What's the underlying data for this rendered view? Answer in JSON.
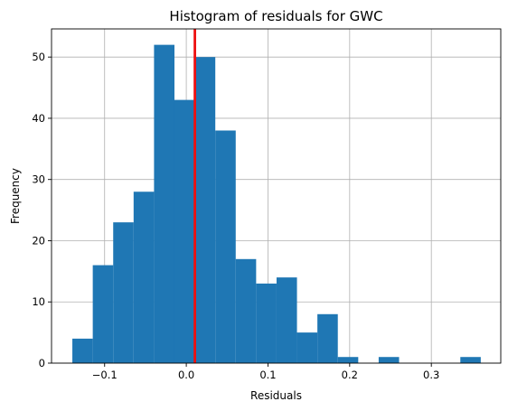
{
  "chart_data": {
    "type": "bar",
    "title": "Histogram of residuals for GWC",
    "xlabel": "Residuals",
    "ylabel": "Frequency",
    "grid": true,
    "xlim": [
      -0.165,
      0.385
    ],
    "ylim": [
      0,
      54.6
    ],
    "xticks": [
      -0.1,
      0.0,
      0.1,
      0.2,
      0.3
    ],
    "xtick_labels": [
      "−0.1",
      "0.0",
      "0.1",
      "0.2",
      "0.3"
    ],
    "yticks": [
      0,
      10,
      20,
      30,
      40,
      50
    ],
    "ytick_labels": [
      "0",
      "10",
      "20",
      "30",
      "40",
      "50"
    ],
    "bins": [
      {
        "x0": -0.1395,
        "x1": -0.1145,
        "count": 4
      },
      {
        "x0": -0.1145,
        "x1": -0.0895,
        "count": 16
      },
      {
        "x0": -0.0895,
        "x1": -0.0645,
        "count": 23
      },
      {
        "x0": -0.0645,
        "x1": -0.0395,
        "count": 28
      },
      {
        "x0": -0.0395,
        "x1": -0.0145,
        "count": 52
      },
      {
        "x0": -0.0145,
        "x1": 0.0105,
        "count": 43
      },
      {
        "x0": 0.0105,
        "x1": 0.0355,
        "count": 50
      },
      {
        "x0": 0.0355,
        "x1": 0.0605,
        "count": 38
      },
      {
        "x0": 0.0605,
        "x1": 0.0855,
        "count": 17
      },
      {
        "x0": 0.0855,
        "x1": 0.1105,
        "count": 13
      },
      {
        "x0": 0.1105,
        "x1": 0.1355,
        "count": 14
      },
      {
        "x0": 0.1355,
        "x1": 0.1605,
        "count": 5
      },
      {
        "x0": 0.1605,
        "x1": 0.1855,
        "count": 8
      },
      {
        "x0": 0.1855,
        "x1": 0.2105,
        "count": 1
      },
      {
        "x0": 0.2105,
        "x1": 0.2355,
        "count": 0
      },
      {
        "x0": 0.2355,
        "x1": 0.2605,
        "count": 1
      },
      {
        "x0": 0.2605,
        "x1": 0.2855,
        "count": 0
      },
      {
        "x0": 0.2855,
        "x1": 0.3105,
        "count": 0
      },
      {
        "x0": 0.3105,
        "x1": 0.3355,
        "count": 0
      },
      {
        "x0": 0.3355,
        "x1": 0.3605,
        "count": 1
      }
    ],
    "mean_line": {
      "x": 0.0105,
      "color": "#ee1111"
    },
    "bar_color": "#1f77b4",
    "grid_color": "#b0b0b0"
  }
}
